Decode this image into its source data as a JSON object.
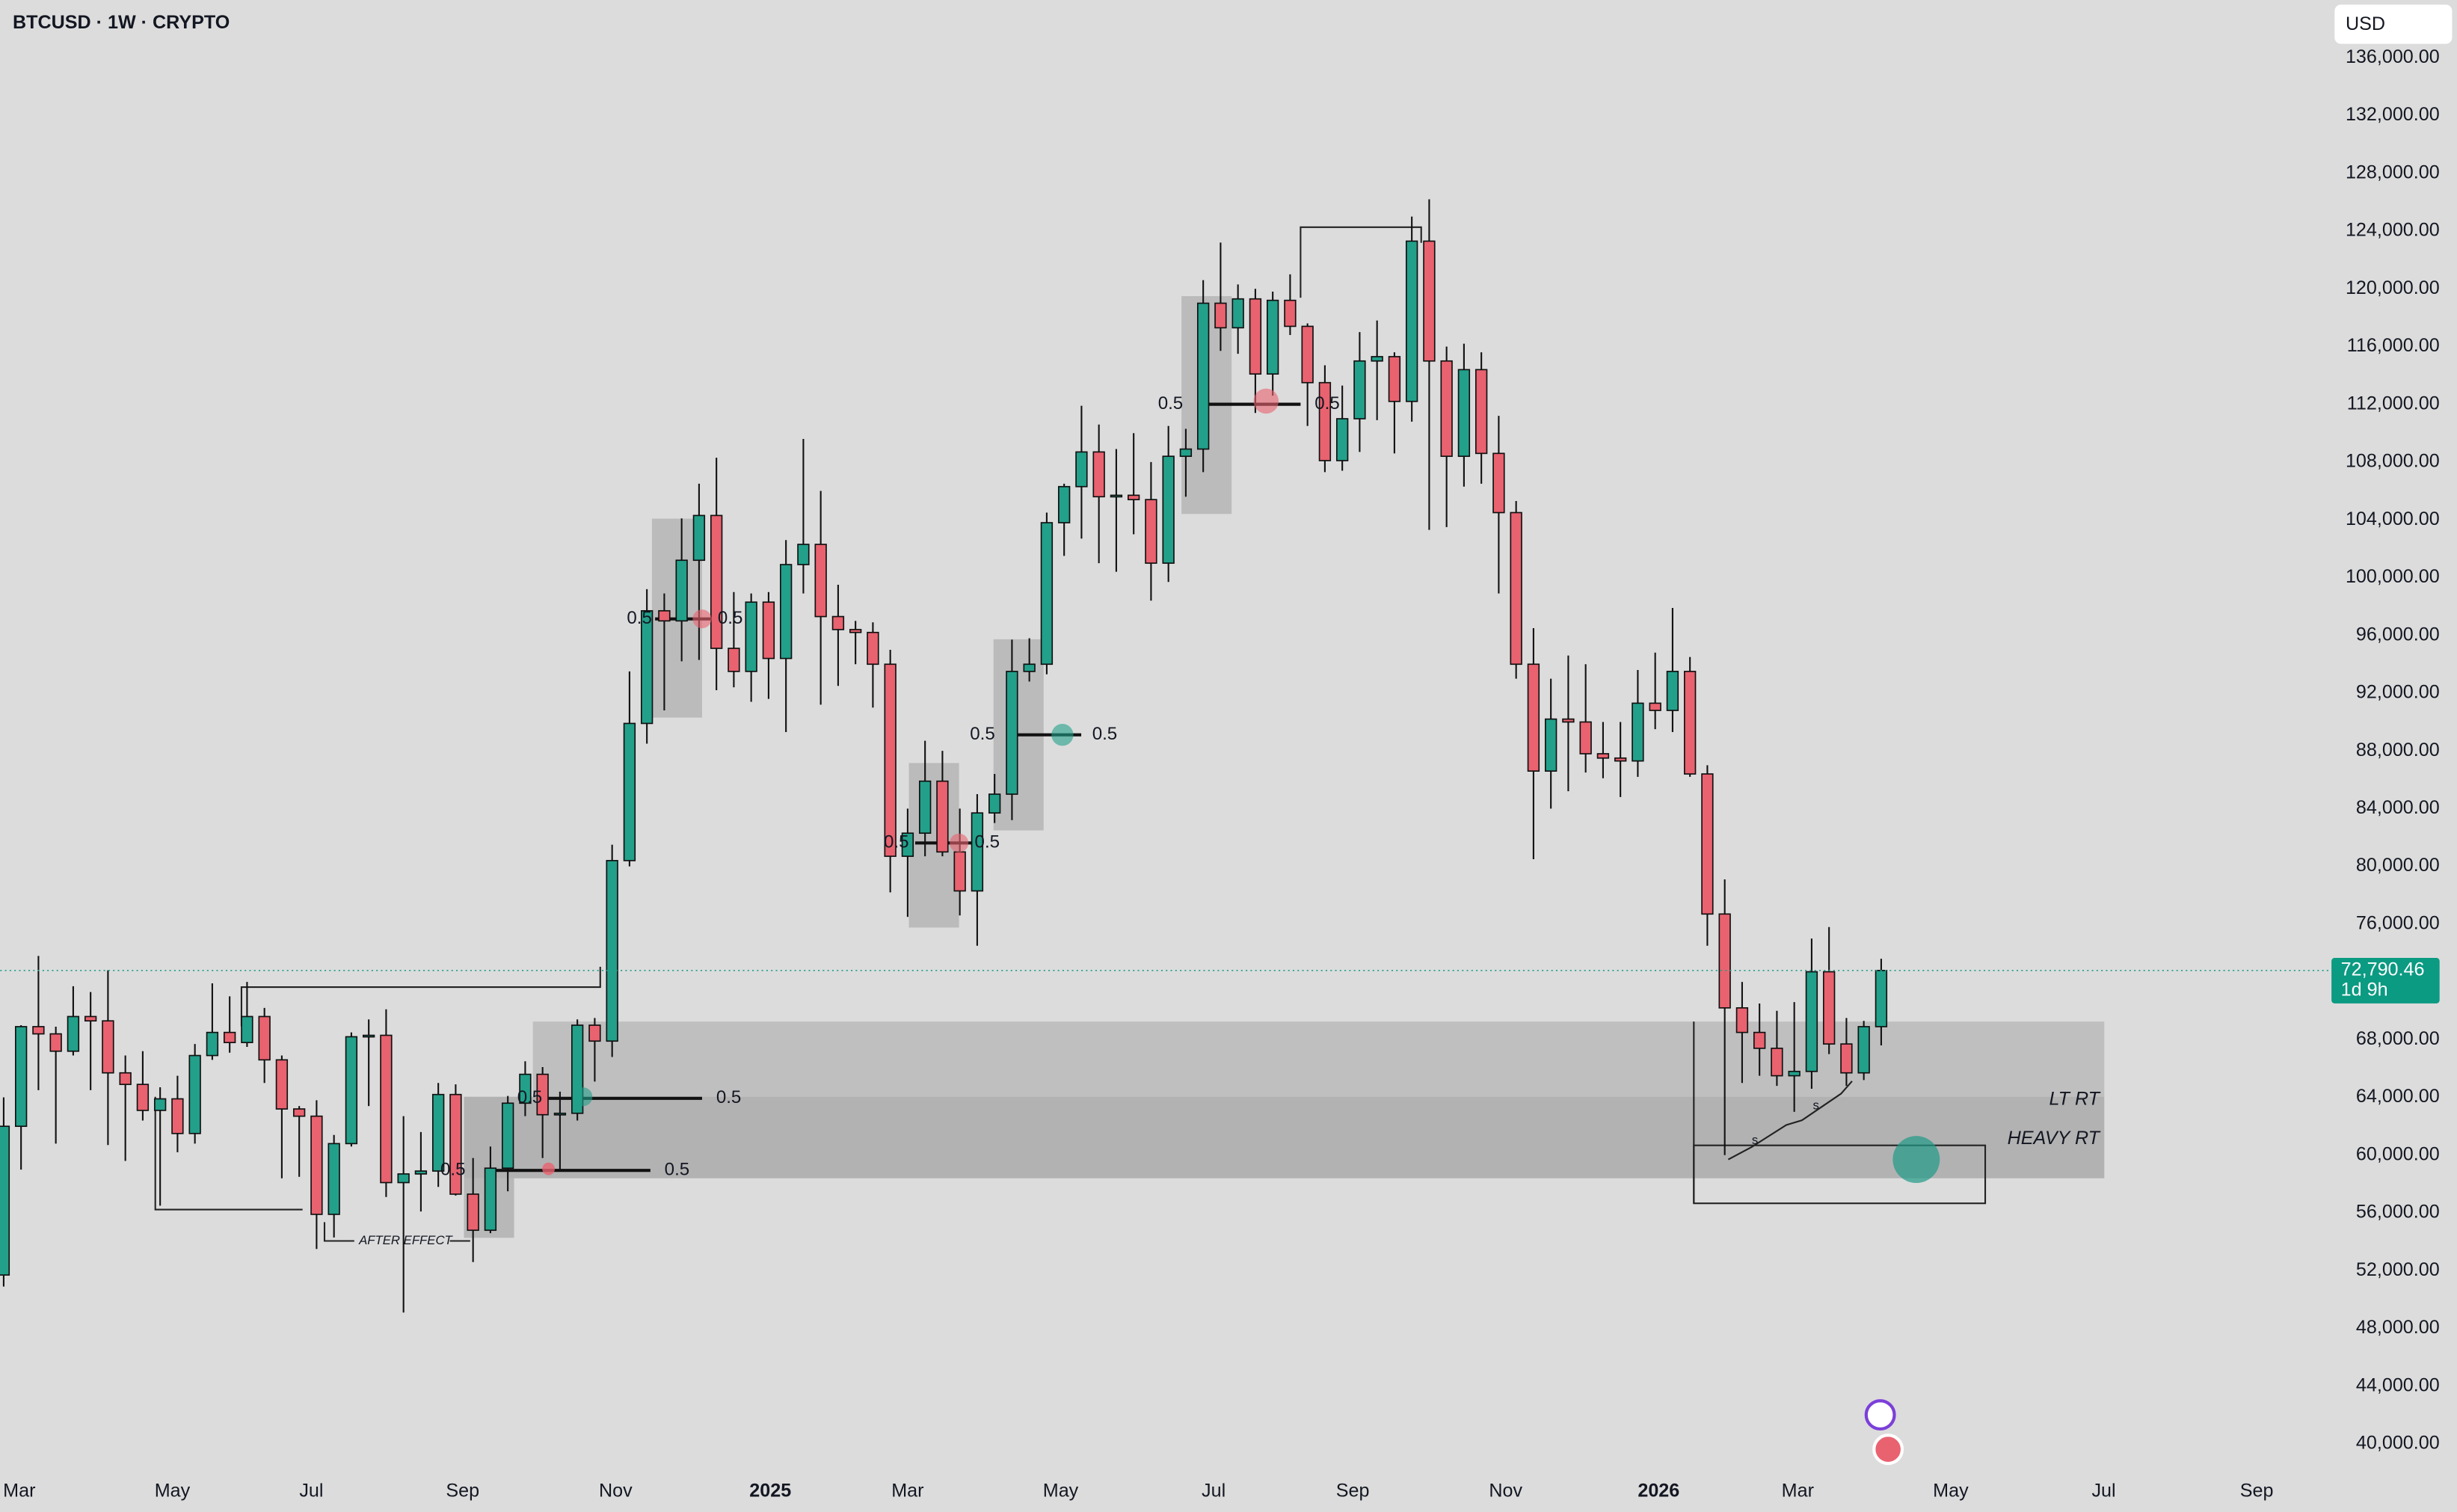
{
  "chart_data": {
    "type": "candlestick",
    "title": "BTCUSD · 1W · CRYPTO",
    "currency": "USD",
    "up_color": "#22a08a",
    "down_color": "#e9626f",
    "open": [
      51700,
      62000,
      68900,
      68400,
      67200,
      69600,
      69300,
      65700,
      64900,
      63100,
      63900,
      61500,
      66900,
      68500,
      67800,
      69600,
      66600,
      63200,
      62700,
      55900,
      60800,
      68200,
      68300,
      58100,
      58700,
      58900,
      64200,
      57300,
      54800,
      59100,
      63600,
      65600,
      62800,
      62900,
      69000,
      67900,
      80400,
      89900,
      97700,
      97000,
      101200,
      104300,
      95100,
      93500,
      98300,
      94400,
      100900,
      102300,
      97300,
      96400,
      96200,
      94000,
      80700,
      82300,
      85900,
      81000,
      78300,
      83700,
      85000,
      93500,
      94000,
      103800,
      106300,
      108700,
      105600,
      105700,
      105400,
      101000,
      108400,
      108900,
      119000,
      117300,
      119300,
      114100,
      119200,
      117400,
      113500,
      108100,
      111000,
      115000,
      115300,
      112200,
      123300,
      115000,
      108400,
      114400,
      108600,
      104500,
      94000,
      86600,
      90200,
      90000,
      87800,
      87500,
      87300,
      91300,
      90800,
      93500,
      86400,
      76700,
      70200,
      68500,
      67400,
      65500,
      65800,
      72700,
      67700,
      65700,
      68900
    ],
    "high": [
      64000,
      69000,
      73800,
      68900,
      71700,
      71300,
      72800,
      66900,
      67200,
      64700,
      65500,
      67700,
      71900,
      71000,
      72000,
      70200,
      66900,
      63400,
      63800,
      61400,
      68500,
      69400,
      70100,
      62700,
      61600,
      65000,
      64900,
      59800,
      60600,
      64100,
      66500,
      66100,
      64400,
      69400,
      69500,
      81500,
      93500,
      99200,
      98900,
      104100,
      106500,
      108300,
      99000,
      98900,
      99000,
      102600,
      109600,
      106000,
      99500,
      97000,
      96900,
      95000,
      84000,
      88700,
      88000,
      84000,
      85000,
      86400,
      95700,
      95800,
      104500,
      106500,
      111900,
      110600,
      108900,
      110000,
      108000,
      110500,
      110300,
      120600,
      123200,
      120300,
      120000,
      119800,
      121000,
      117600,
      114700,
      113300,
      117000,
      117800,
      115600,
      125000,
      126200,
      116000,
      116200,
      115600,
      111200,
      105300,
      96500,
      93000,
      94600,
      94000,
      90000,
      90000,
      93600,
      94800,
      97900,
      94500,
      87000,
      79100,
      72000,
      70500,
      70000,
      70600,
      75000,
      75800,
      69500,
      69300,
      73600
    ],
    "low": [
      50900,
      59000,
      64500,
      60800,
      66900,
      64500,
      60700,
      59600,
      62400,
      56500,
      60200,
      60800,
      66600,
      67100,
      67500,
      65000,
      58400,
      58500,
      53500,
      54300,
      60600,
      63400,
      57100,
      49100,
      56100,
      57800,
      57200,
      52600,
      54600,
      57500,
      62700,
      59800,
      58900,
      62400,
      65100,
      66800,
      80000,
      88500,
      90800,
      94200,
      94300,
      92200,
      92400,
      91400,
      91600,
      89300,
      98900,
      91200,
      92500,
      94000,
      91000,
      78200,
      76500,
      80700,
      80700,
      76600,
      74500,
      83000,
      83200,
      92800,
      93300,
      101500,
      102700,
      101000,
      100400,
      103000,
      98400,
      99700,
      105600,
      107300,
      115700,
      115500,
      111400,
      112600,
      116800,
      110500,
      107300,
      107400,
      108700,
      110900,
      108600,
      110800,
      103300,
      103500,
      106300,
      106500,
      98900,
      93000,
      80500,
      84000,
      85200,
      86500,
      86100,
      84800,
      86200,
      89500,
      89300,
      86200,
      74500,
      60000,
      65000,
      65500,
      64800,
      63000,
      64600,
      67000,
      64800,
      65200,
      67600
    ],
    "close": [
      62000,
      68900,
      68400,
      67200,
      69600,
      69300,
      65700,
      64900,
      63100,
      63900,
      61500,
      66900,
      68500,
      67800,
      69600,
      66600,
      63200,
      62700,
      55900,
      60800,
      68200,
      68300,
      58100,
      58700,
      58900,
      64200,
      57300,
      54800,
      59100,
      63600,
      65600,
      62800,
      62900,
      69000,
      67900,
      80400,
      89900,
      97700,
      97000,
      101200,
      104300,
      95100,
      93500,
      98300,
      94400,
      100900,
      102300,
      97300,
      96400,
      96200,
      94000,
      80700,
      82300,
      85900,
      81000,
      78300,
      83700,
      85000,
      93500,
      94000,
      103800,
      106300,
      108700,
      105600,
      105700,
      105400,
      101000,
      108400,
      108900,
      119000,
      117300,
      119300,
      114100,
      119200,
      117400,
      113500,
      108100,
      111000,
      115000,
      115300,
      112200,
      123300,
      115000,
      108400,
      114400,
      108600,
      104500,
      94000,
      86600,
      90200,
      90000,
      87800,
      87500,
      87300,
      91300,
      90800,
      93500,
      86400,
      76700,
      70200,
      68500,
      67400,
      65500,
      65800,
      72700,
      67700,
      65700,
      68900,
      72790.46
    ],
    "last_price": {
      "value": 72790.46,
      "label": "72,790.46"
    },
    "countdown": "1d 9h",
    "ylim": [
      38000,
      140000
    ],
    "yticks": [
      {
        "value": 40000,
        "label": "40,000.00"
      },
      {
        "value": 44000,
        "label": "44,000.00"
      },
      {
        "value": 48000,
        "label": "48,000.00"
      },
      {
        "value": 52000,
        "label": "52,000.00"
      },
      {
        "value": 56000,
        "label": "56,000.00"
      },
      {
        "value": 60000,
        "label": "60,000.00"
      },
      {
        "value": 64000,
        "label": "64,000.00"
      },
      {
        "value": 68000,
        "label": "68,000.00"
      },
      {
        "value": 72000,
        "label": "72,000.00"
      },
      {
        "value": 76000,
        "label": "76,000.00"
      },
      {
        "value": 80000,
        "label": "80,000.00"
      },
      {
        "value": 84000,
        "label": "84,000.00"
      },
      {
        "value": 88000,
        "label": "88,000.00"
      },
      {
        "value": 92000,
        "label": "92,000.00"
      },
      {
        "value": 96000,
        "label": "96,000.00"
      },
      {
        "value": 100000,
        "label": "100,000.00"
      },
      {
        "value": 104000,
        "label": "104,000.00"
      },
      {
        "value": 108000,
        "label": "108,000.00"
      },
      {
        "value": 112000,
        "label": "112,000.00"
      },
      {
        "value": 116000,
        "label": "116,000.00"
      },
      {
        "value": 120000,
        "label": "120,000.00"
      },
      {
        "value": 124000,
        "label": "124,000.00"
      },
      {
        "value": 128000,
        "label": "128,000.00"
      },
      {
        "value": 132000,
        "label": "132,000.00"
      },
      {
        "value": 136000,
        "label": "136,000.00"
      }
    ],
    "xlim": [
      -0.2,
      133
    ],
    "xticks": [
      {
        "value": 0.9,
        "label": "Mar"
      },
      {
        "value": 9.7,
        "label": "May"
      },
      {
        "value": 17.7,
        "label": "Jul"
      },
      {
        "value": 26.4,
        "label": "Sep"
      },
      {
        "value": 35.2,
        "label": "Nov"
      },
      {
        "value": 44.1,
        "label": "2025"
      },
      {
        "value": 52.0,
        "label": "Mar"
      },
      {
        "value": 60.8,
        "label": "May"
      },
      {
        "value": 69.6,
        "label": "Jul"
      },
      {
        "value": 77.6,
        "label": "Sep"
      },
      {
        "value": 86.4,
        "label": "Nov"
      },
      {
        "value": 95.2,
        "label": "2026"
      },
      {
        "value": 103.2,
        "label": "Mar"
      },
      {
        "value": 112.0,
        "label": "May"
      },
      {
        "value": 120.8,
        "label": "Jul"
      },
      {
        "value": 129.6,
        "label": "Sep"
      }
    ],
    "annotations": [
      "0.5",
      "0.5",
      "0.5",
      "0.5",
      "0.5",
      "0.5",
      "0.5",
      "0.5",
      "0.5",
      "0.5",
      "0.5",
      "0.5",
      "AFTER EFFECT",
      "LT RT",
      "HEAVY RT",
      "s",
      "s"
    ]
  }
}
